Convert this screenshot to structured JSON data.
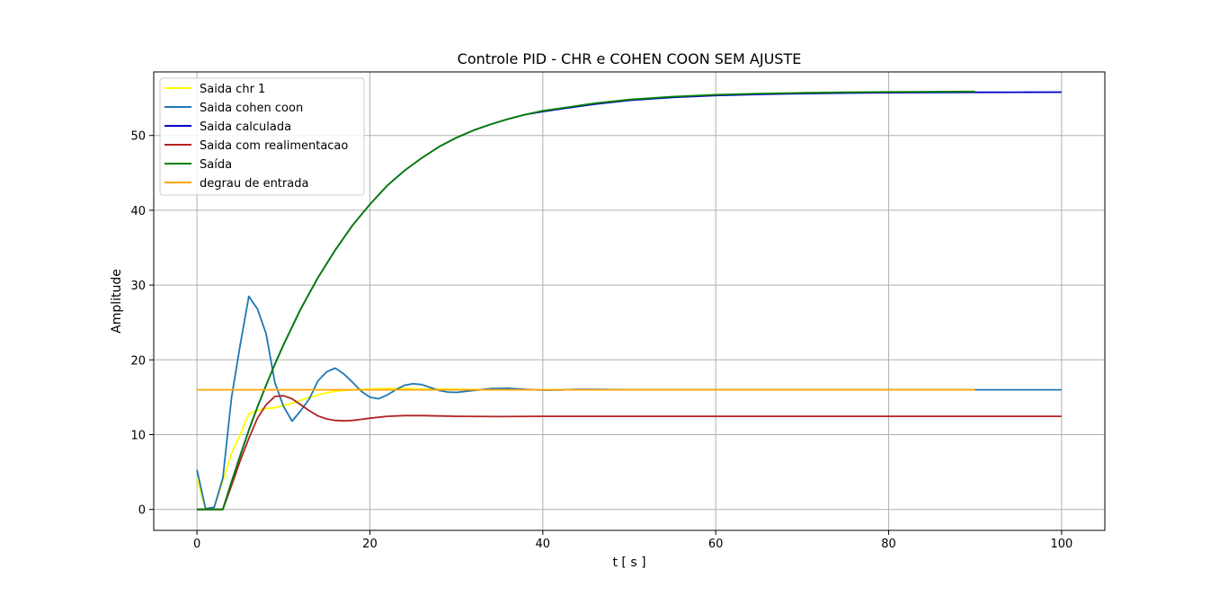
{
  "chart_data": {
    "type": "line",
    "title": "Controle PID - CHR e COHEN COON SEM AJUSTE",
    "xlabel": "t [ s ]",
    "ylabel": "Amplitude",
    "xlim": [
      -5,
      105
    ],
    "ylim": [
      -2.8,
      58.5
    ],
    "xticks": [
      0,
      20,
      40,
      60,
      80,
      100
    ],
    "yticks": [
      0,
      10,
      20,
      30,
      40,
      50
    ],
    "grid": true,
    "legend_position": "top-left",
    "series": [
      {
        "name": "Saida chr 1",
        "color": "#ffff00",
        "x": [
          0,
          1,
          2,
          3,
          4,
          5,
          6,
          7,
          8,
          9,
          10,
          11,
          12,
          13,
          14,
          15,
          16,
          17,
          18,
          19,
          20,
          22,
          24,
          26,
          28,
          30,
          35,
          40,
          45,
          50,
          60,
          70,
          80,
          90
        ],
        "y": [
          4.2,
          0.0,
          0.3,
          3.8,
          7.5,
          10.0,
          12.8,
          13.2,
          13.5,
          13.6,
          13.9,
          14.2,
          14.6,
          15.0,
          15.3,
          15.6,
          15.8,
          15.9,
          16.0,
          16.05,
          16.1,
          16.15,
          16.15,
          16.1,
          16.1,
          16.05,
          16.0,
          16.0,
          16.0,
          16.0,
          16.0,
          16.0,
          16.0,
          16.0
        ]
      },
      {
        "name": "Saida cohen coon",
        "color": "#1f77b4",
        "x": [
          0,
          1,
          2,
          3,
          4,
          5,
          6,
          7,
          8,
          9,
          10,
          11,
          12,
          13,
          14,
          15,
          16,
          17,
          18,
          19,
          20,
          21,
          22,
          23,
          24,
          25,
          26,
          27,
          28,
          29,
          30,
          32,
          34,
          36,
          38,
          40,
          42,
          44,
          46,
          48,
          50,
          55,
          60,
          70,
          80,
          90,
          100
        ],
        "y": [
          5.3,
          0.1,
          0.3,
          4.2,
          15.0,
          22.0,
          28.5,
          26.8,
          23.5,
          17.0,
          13.8,
          11.8,
          13.2,
          14.8,
          17.2,
          18.4,
          18.9,
          18.1,
          17.0,
          15.8,
          15.0,
          14.8,
          15.3,
          16.0,
          16.6,
          16.8,
          16.7,
          16.3,
          15.9,
          15.7,
          15.65,
          15.9,
          16.15,
          16.2,
          16.05,
          15.95,
          15.98,
          16.05,
          16.05,
          16.02,
          16.0,
          16.0,
          16.0,
          16.0,
          16.0,
          16.0,
          16.0
        ]
      },
      {
        "name": "Saida calculada",
        "color": "#0000cc",
        "x": [
          0,
          3,
          4,
          5,
          6,
          7,
          8,
          9,
          10,
          12,
          14,
          16,
          18,
          20,
          22,
          24,
          26,
          28,
          30,
          32,
          34,
          36,
          38,
          40,
          43,
          46,
          50,
          55,
          60,
          65,
          70,
          75,
          80,
          85,
          90,
          95,
          100
        ],
        "y": [
          0,
          0,
          3.7,
          7.2,
          10.6,
          13.7,
          16.6,
          19.4,
          22.0,
          26.8,
          31.0,
          34.7,
          38.0,
          40.8,
          43.3,
          45.3,
          47.0,
          48.5,
          49.7,
          50.7,
          51.5,
          52.2,
          52.8,
          53.2,
          53.7,
          54.2,
          54.7,
          55.1,
          55.35,
          55.5,
          55.6,
          55.68,
          55.72,
          55.75,
          55.77,
          55.78,
          55.8
        ]
      },
      {
        "name": "Saida com realimentacao",
        "color": "#b22222",
        "x": [
          0,
          3,
          4,
          5,
          6,
          7,
          8,
          9,
          10,
          11,
          12,
          13,
          14,
          15,
          16,
          17,
          18,
          19,
          20,
          22,
          24,
          26,
          28,
          30,
          35,
          40,
          50,
          60,
          70,
          80,
          90,
          100
        ],
        "y": [
          0,
          0,
          3.2,
          6.5,
          9.5,
          12.2,
          14.0,
          15.1,
          15.2,
          14.8,
          14.0,
          13.2,
          12.5,
          12.1,
          11.9,
          11.85,
          11.9,
          12.05,
          12.2,
          12.45,
          12.55,
          12.55,
          12.5,
          12.45,
          12.42,
          12.45,
          12.45,
          12.45,
          12.45,
          12.45,
          12.45,
          12.45
        ]
      },
      {
        "name": "Saída",
        "color": "#008000",
        "x": [
          0,
          3,
          4,
          5,
          6,
          7,
          8,
          9,
          10,
          12,
          14,
          16,
          18,
          20,
          22,
          24,
          26,
          28,
          30,
          32,
          34,
          36,
          38,
          40,
          43,
          46,
          50,
          55,
          60,
          65,
          70,
          75,
          80,
          85,
          90
        ],
        "y": [
          0,
          0,
          3.7,
          7.2,
          10.6,
          13.7,
          16.6,
          19.4,
          22.0,
          26.8,
          31.0,
          34.7,
          38.0,
          40.8,
          43.3,
          45.3,
          47.0,
          48.5,
          49.7,
          50.7,
          51.5,
          52.2,
          52.8,
          53.3,
          53.8,
          54.3,
          54.8,
          55.2,
          55.45,
          55.6,
          55.7,
          55.78,
          55.82,
          55.85,
          55.88
        ]
      },
      {
        "name": "degrau de entrada",
        "color": "#ffa500",
        "x": [
          0,
          90
        ],
        "y": [
          16.0,
          16.0
        ]
      }
    ]
  }
}
